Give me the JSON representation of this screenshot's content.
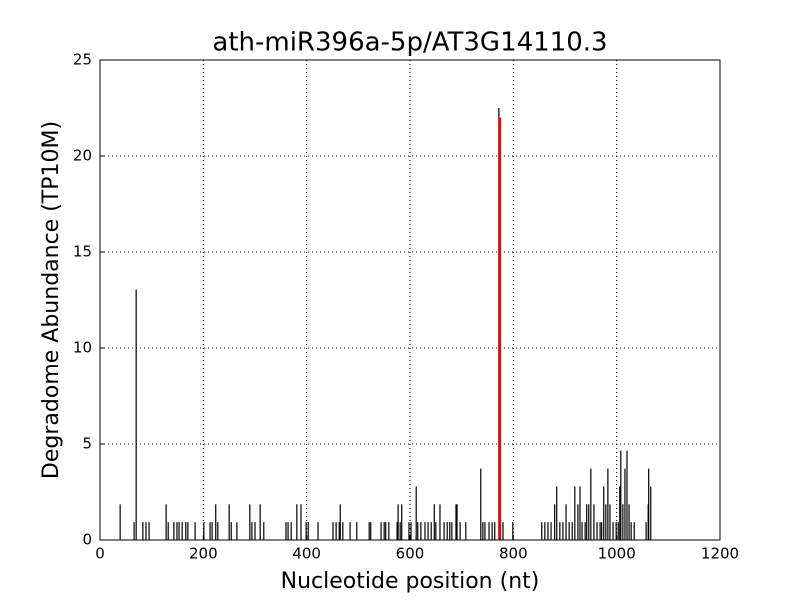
{
  "chart_data": {
    "type": "stem",
    "title": "ath-miR396a-5p/AT3G14110.3",
    "x_label": "Nucleotide position (nt)",
    "y_label": "Degradome Abundance (TP10M)",
    "xlim": [
      0,
      1200
    ],
    "ylim": [
      0,
      25
    ],
    "xticks": [
      0,
      200,
      400,
      600,
      800,
      1000,
      1200
    ],
    "yticks": [
      0,
      5,
      10,
      15,
      20,
      25
    ],
    "grid": true,
    "series": [
      {
        "color": "#000000",
        "x": [
          39,
          66,
          70,
          83,
          89,
          95,
          128,
          132,
          143,
          149,
          153,
          159,
          166,
          170,
          184,
          201,
          213,
          217,
          224,
          228,
          250,
          254,
          265,
          290,
          294,
          300,
          310,
          317,
          360,
          364,
          370,
          381,
          389,
          399,
          403,
          422,
          451,
          457,
          463,
          465,
          470,
          484,
          497,
          521,
          524,
          544,
          550,
          553,
          559,
          575,
          577,
          581,
          584,
          598,
          602,
          612,
          615,
          621,
          629,
          635,
          641,
          647,
          650,
          658,
          666,
          672,
          677,
          681,
          689,
          691,
          697,
          708,
          737,
          741,
          745,
          753,
          759,
          764,
          772,
          780,
          799,
          855,
          861,
          867,
          873,
          880,
          884,
          890,
          896,
          902,
          908,
          914,
          919,
          925,
          929,
          933,
          939,
          942,
          946,
          950,
          956,
          962,
          968,
          971,
          975,
          979,
          983,
          987,
          993,
          999,
          1003,
          1006,
          1008,
          1012,
          1016,
          1020,
          1024,
          1028,
          1034,
          1057,
          1061,
          1062,
          1066
        ],
        "values": [
          1.86,
          0.93,
          13.05,
          0.93,
          0.93,
          0.93,
          1.86,
          0.93,
          0.93,
          0.93,
          0.93,
          0.93,
          0.93,
          0.93,
          0.93,
          0.93,
          0.93,
          0.93,
          1.86,
          0.93,
          1.86,
          0.93,
          0.93,
          1.86,
          0.93,
          0.93,
          1.86,
          0.93,
          0.93,
          0.93,
          0.93,
          1.86,
          1.86,
          0.93,
          0.93,
          0.93,
          0.93,
          0.93,
          0.93,
          1.86,
          0.93,
          0.93,
          0.93,
          0.93,
          0.93,
          0.93,
          0.93,
          0.93,
          0.93,
          0.93,
          1.86,
          0.93,
          1.86,
          0.93,
          0.93,
          2.79,
          0.93,
          0.93,
          0.93,
          0.93,
          0.93,
          1.86,
          0.93,
          1.86,
          0.93,
          0.93,
          0.93,
          0.93,
          1.86,
          1.86,
          0.93,
          0.93,
          3.72,
          0.93,
          0.93,
          0.93,
          0.93,
          0.93,
          22.5,
          0.93,
          0.93,
          0.93,
          0.93,
          0.93,
          0.93,
          1.86,
          2.79,
          0.93,
          0.93,
          1.86,
          0.93,
          0.93,
          2.79,
          1.86,
          2.79,
          0.93,
          0.93,
          1.86,
          1.86,
          3.72,
          1.86,
          0.93,
          0.93,
          0.93,
          2.79,
          1.86,
          3.72,
          1.86,
          0.93,
          0.93,
          0.93,
          2.79,
          4.65,
          1.86,
          3.72,
          4.65,
          1.86,
          0.93,
          0.93,
          0.93,
          1.86,
          3.72,
          2.79
        ]
      },
      {
        "color": "#ff0000",
        "x": [
          774
        ],
        "values": [
          22.0
        ]
      }
    ]
  }
}
